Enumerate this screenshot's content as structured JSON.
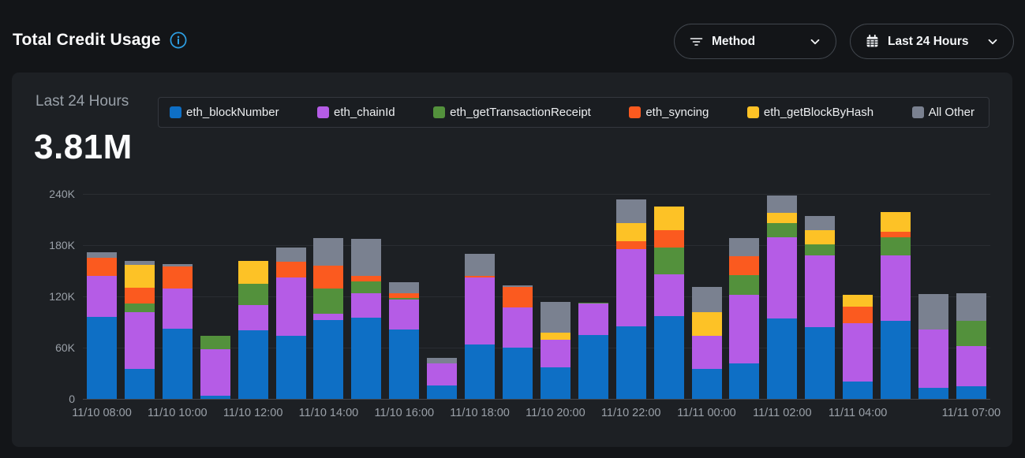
{
  "header": {
    "title": "Total Credit Usage",
    "method_button": {
      "label": "Method"
    },
    "range_button": {
      "label": "Last 24 Hours"
    }
  },
  "card": {
    "period_label": "Last 24 Hours",
    "total_value": "3.81M"
  },
  "colors": {
    "accent_info": "#2d9fe3",
    "page_bg": "#131518",
    "card_bg": "#1d2024",
    "series_blue": "#0e6fc5",
    "series_purple": "#b55ce6",
    "series_green": "#53913c",
    "series_orange": "#fb5a1f",
    "series_yellow": "#fdc226",
    "series_gray": "#7a8190"
  },
  "icons": {
    "info": "info-icon",
    "filter": "filter-icon",
    "calendar": "calendar-icon",
    "chevron": "chevron-down-icon"
  },
  "chart_data": {
    "type": "bar",
    "stacked": true,
    "title": "Total Credit Usage",
    "total_label": "3.81M",
    "grid": true,
    "legend_position": "top",
    "ylim": [
      0,
      240000
    ],
    "y_ticks": [
      "240K",
      "180K",
      "120K",
      "60K",
      "0"
    ],
    "categories": [
      "11/10 08:00",
      "11/10 09:00",
      "11/10 10:00",
      "11/10 11:00",
      "11/10 12:00",
      "11/10 13:00",
      "11/10 14:00",
      "11/10 15:00",
      "11/10 16:00",
      "11/10 17:00",
      "11/10 18:00",
      "11/10 19:00",
      "11/10 20:00",
      "11/10 21:00",
      "11/10 22:00",
      "11/10 23:00",
      "11/11 00:00",
      "11/11 01:00",
      "11/11 02:00",
      "11/11 03:00",
      "11/11 04:00",
      "11/11 05:00",
      "11/11 06:00",
      "11/11 07:00"
    ],
    "x_tick_labels": [
      "11/10 08:00",
      "",
      "11/10 10:00",
      "",
      "11/10 12:00",
      "",
      "11/10 14:00",
      "",
      "11/10 16:00",
      "",
      "11/10 18:00",
      "",
      "11/10 20:00",
      "",
      "11/10 22:00",
      "",
      "11/11 00:00",
      "",
      "11/11 02:00",
      "",
      "11/11 04:00",
      "",
      "",
      "11/11 07:00"
    ],
    "series": [
      {
        "name": "eth_blockNumber",
        "color": "#0e6fc5",
        "values": [
          96000,
          35000,
          82000,
          4000,
          80000,
          74000,
          92000,
          95000,
          81000,
          16000,
          64000,
          60000,
          37000,
          75000,
          85000,
          97000,
          35000,
          42000,
          94000,
          84000,
          20000,
          91000,
          13000,
          15000
        ]
      },
      {
        "name": "eth_chainId",
        "color": "#b55ce6",
        "values": [
          48000,
          67000,
          47000,
          54000,
          30000,
          68000,
          8000,
          29000,
          35000,
          26000,
          78000,
          47000,
          32000,
          37000,
          90000,
          49000,
          39000,
          80000,
          95000,
          84000,
          69000,
          77000,
          68000,
          47000
        ]
      },
      {
        "name": "eth_getTransactionReceipt",
        "color": "#53913c",
        "values": [
          0,
          10000,
          0,
          16000,
          25000,
          0,
          29000,
          14000,
          2000,
          0,
          0,
          0,
          0,
          1000,
          0,
          31000,
          0,
          23000,
          17000,
          13000,
          0,
          21000,
          0,
          29000
        ]
      },
      {
        "name": "eth_syncing",
        "color": "#fb5a1f",
        "values": [
          21000,
          18000,
          26000,
          0,
          0,
          19000,
          27000,
          6000,
          6000,
          0,
          2000,
          24000,
          0,
          0,
          10000,
          21000,
          0,
          22000,
          0,
          0,
          19000,
          7000,
          0,
          0
        ]
      },
      {
        "name": "eth_getBlockByHash",
        "color": "#fdc226",
        "values": [
          0,
          27000,
          0,
          0,
          27000,
          0,
          0,
          0,
          0,
          0,
          0,
          0,
          9000,
          0,
          21000,
          27000,
          28000,
          0,
          12000,
          17000,
          14000,
          23000,
          0,
          0
        ]
      },
      {
        "name": "All Other",
        "color": "#7a8190",
        "values": [
          7000,
          5000,
          3000,
          0,
          0,
          16000,
          32000,
          43000,
          13000,
          6000,
          26000,
          2000,
          36000,
          0,
          28000,
          0,
          29000,
          21000,
          20000,
          16000,
          0,
          0,
          42000,
          33000
        ]
      }
    ]
  }
}
